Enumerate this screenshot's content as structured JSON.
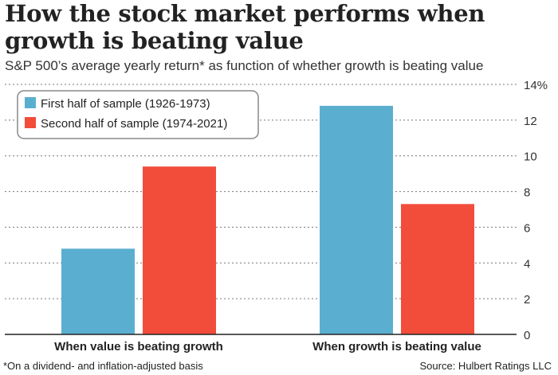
{
  "title": "How the stock market performs when growth is beating value",
  "subtitle": "S&P 500’s average yearly return* as function of whether growth is beating value",
  "footnote": "*On a dividend- and inflation-adjusted basis",
  "source": "Source: Hulbert Ratings LLC",
  "colors": {
    "first": "#5aafd0",
    "second": "#f24c3b",
    "grid": "#777777",
    "axis": "#222222"
  },
  "chart_data": {
    "type": "bar",
    "categories": [
      "When value is beating growth",
      "When growth is beating value"
    ],
    "series": [
      {
        "name": "First half of sample (1926-1973)",
        "values": [
          4.8,
          12.8
        ]
      },
      {
        "name": "Second half of sample (1974-2021)",
        "values": [
          9.4,
          7.3
        ]
      }
    ],
    "ylim": [
      0,
      14
    ],
    "yticks": [
      "0",
      "2",
      "4",
      "6",
      "8",
      "10",
      "12",
      "14%"
    ],
    "grid": "horizontal dotted",
    "legend_position": "top-left",
    "y_axis_side": "right"
  }
}
